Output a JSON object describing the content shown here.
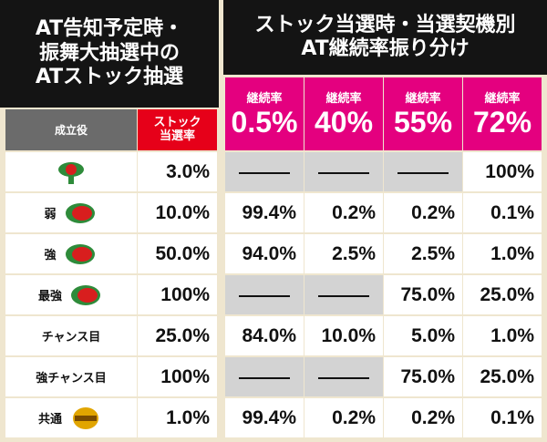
{
  "left_header": [
    "AT告知予定時・",
    "振舞大抽選中の",
    "ATストック抽選"
  ],
  "right_header": [
    "ストック当選時・当選契機別",
    "AT継続率振り分け"
  ],
  "table": {
    "col_role": "成立役",
    "col_rate": [
      "ストック",
      "当選率"
    ],
    "columns": [
      {
        "label": "継続率",
        "value": "0.5%"
      },
      {
        "label": "継続率",
        "value": "40%"
      },
      {
        "label": "継続率",
        "value": "55%"
      },
      {
        "label": "継続率",
        "value": "72%"
      }
    ],
    "rows": [
      {
        "rate": "3.0%",
        "cells": [
          null,
          null,
          null,
          "100%"
        ]
      },
      {
        "label": "弱",
        "rate": "10.0%",
        "cells": [
          "99.4%",
          "0.2%",
          "0.2%",
          "0.1%"
        ]
      },
      {
        "label": "強",
        "rate": "50.0%",
        "cells": [
          "94.0%",
          "2.5%",
          "2.5%",
          "1.0%"
        ]
      },
      {
        "label": "最強",
        "rate": "100%",
        "cells": [
          null,
          null,
          "75.0%",
          "25.0%"
        ]
      },
      {
        "label": "チャンス目",
        "rate": "25.0%",
        "cells": [
          "84.0%",
          "10.0%",
          "5.0%",
          "1.0%"
        ]
      },
      {
        "label": "強チャンス目",
        "rate": "100%",
        "cells": [
          null,
          null,
          "75.0%",
          "25.0%"
        ]
      },
      {
        "label": "共通",
        "rate": "1.0%",
        "cells": [
          "99.4%",
          "0.2%",
          "0.2%",
          "0.1%"
        ]
      }
    ]
  }
}
